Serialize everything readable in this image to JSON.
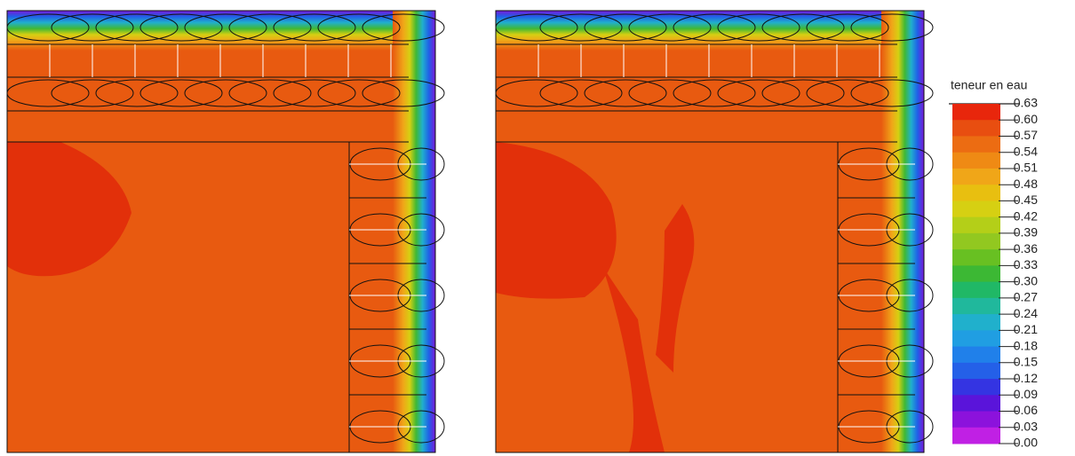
{
  "legend": {
    "title": "teneur en eau",
    "labels": [
      "0.63",
      "0.60",
      "0.57",
      "0.54",
      "0.51",
      "0.48",
      "0.45",
      "0.42",
      "0.39",
      "0.36",
      "0.33",
      "0.30",
      "0.27",
      "0.24",
      "0.21",
      "0.18",
      "0.15",
      "0.12",
      "0.09",
      "0.06",
      "0.03",
      "0.00"
    ],
    "colors": [
      "#e8260c",
      "#e84e10",
      "#ec6c12",
      "#ef8a14",
      "#f0a618",
      "#e8bf10",
      "#d6d012",
      "#b4cf18",
      "#92c820",
      "#68c022",
      "#3cb834",
      "#20b866",
      "#20b89c",
      "#20b0cc",
      "#209ee2",
      "#2080ea",
      "#2460e8",
      "#3434e2",
      "#5a14da",
      "#8c12dc",
      "#c020e4"
    ]
  }
}
